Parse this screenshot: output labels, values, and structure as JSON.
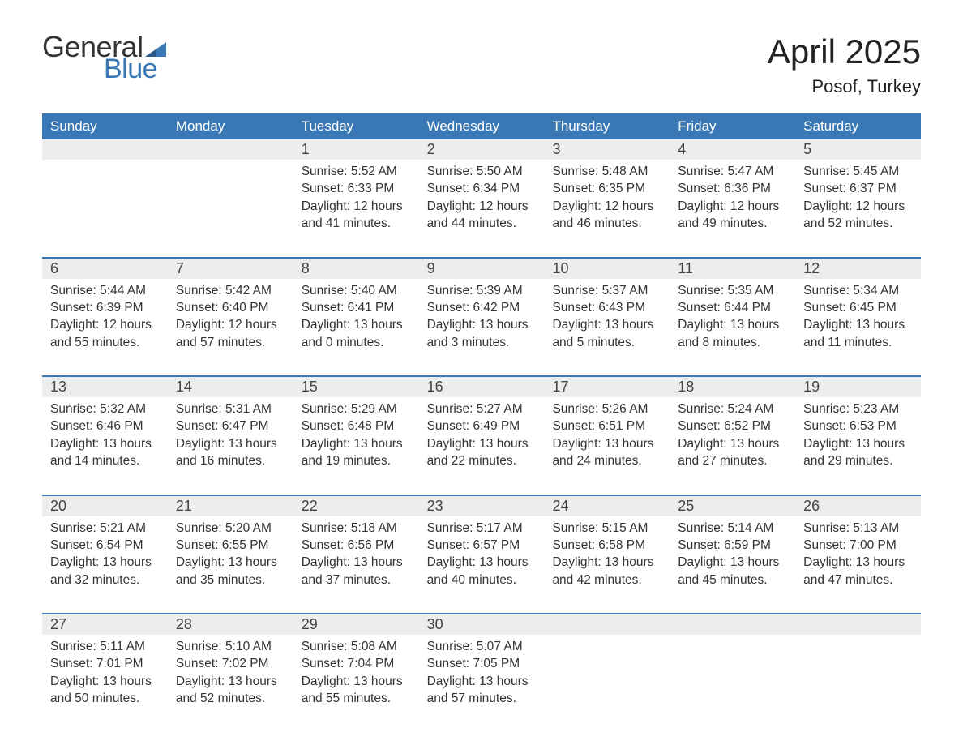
{
  "logo": {
    "text1": "General",
    "text2": "Blue",
    "text_color": "#333333",
    "accent_color": "#3a78b5"
  },
  "title": "April 2025",
  "location": "Posof, Turkey",
  "header_bg": "#3a78b5",
  "daynum_bg": "#ededed",
  "text_color": "#333333",
  "border_color": "#3a78b5",
  "weekdays": [
    "Sunday",
    "Monday",
    "Tuesday",
    "Wednesday",
    "Thursday",
    "Friday",
    "Saturday"
  ],
  "weeks": [
    [
      {
        "n": "",
        "sunrise": "",
        "sunset": "",
        "daylight1": "",
        "daylight2": "",
        "empty": true
      },
      {
        "n": "",
        "sunrise": "",
        "sunset": "",
        "daylight1": "",
        "daylight2": "",
        "empty": true
      },
      {
        "n": "1",
        "sunrise": "Sunrise: 5:52 AM",
        "sunset": "Sunset: 6:33 PM",
        "daylight1": "Daylight: 12 hours",
        "daylight2": "and 41 minutes."
      },
      {
        "n": "2",
        "sunrise": "Sunrise: 5:50 AM",
        "sunset": "Sunset: 6:34 PM",
        "daylight1": "Daylight: 12 hours",
        "daylight2": "and 44 minutes."
      },
      {
        "n": "3",
        "sunrise": "Sunrise: 5:48 AM",
        "sunset": "Sunset: 6:35 PM",
        "daylight1": "Daylight: 12 hours",
        "daylight2": "and 46 minutes."
      },
      {
        "n": "4",
        "sunrise": "Sunrise: 5:47 AM",
        "sunset": "Sunset: 6:36 PM",
        "daylight1": "Daylight: 12 hours",
        "daylight2": "and 49 minutes."
      },
      {
        "n": "5",
        "sunrise": "Sunrise: 5:45 AM",
        "sunset": "Sunset: 6:37 PM",
        "daylight1": "Daylight: 12 hours",
        "daylight2": "and 52 minutes."
      }
    ],
    [
      {
        "n": "6",
        "sunrise": "Sunrise: 5:44 AM",
        "sunset": "Sunset: 6:39 PM",
        "daylight1": "Daylight: 12 hours",
        "daylight2": "and 55 minutes."
      },
      {
        "n": "7",
        "sunrise": "Sunrise: 5:42 AM",
        "sunset": "Sunset: 6:40 PM",
        "daylight1": "Daylight: 12 hours",
        "daylight2": "and 57 minutes."
      },
      {
        "n": "8",
        "sunrise": "Sunrise: 5:40 AM",
        "sunset": "Sunset: 6:41 PM",
        "daylight1": "Daylight: 13 hours",
        "daylight2": "and 0 minutes."
      },
      {
        "n": "9",
        "sunrise": "Sunrise: 5:39 AM",
        "sunset": "Sunset: 6:42 PM",
        "daylight1": "Daylight: 13 hours",
        "daylight2": "and 3 minutes."
      },
      {
        "n": "10",
        "sunrise": "Sunrise: 5:37 AM",
        "sunset": "Sunset: 6:43 PM",
        "daylight1": "Daylight: 13 hours",
        "daylight2": "and 5 minutes."
      },
      {
        "n": "11",
        "sunrise": "Sunrise: 5:35 AM",
        "sunset": "Sunset: 6:44 PM",
        "daylight1": "Daylight: 13 hours",
        "daylight2": "and 8 minutes."
      },
      {
        "n": "12",
        "sunrise": "Sunrise: 5:34 AM",
        "sunset": "Sunset: 6:45 PM",
        "daylight1": "Daylight: 13 hours",
        "daylight2": "and 11 minutes."
      }
    ],
    [
      {
        "n": "13",
        "sunrise": "Sunrise: 5:32 AM",
        "sunset": "Sunset: 6:46 PM",
        "daylight1": "Daylight: 13 hours",
        "daylight2": "and 14 minutes."
      },
      {
        "n": "14",
        "sunrise": "Sunrise: 5:31 AM",
        "sunset": "Sunset: 6:47 PM",
        "daylight1": "Daylight: 13 hours",
        "daylight2": "and 16 minutes."
      },
      {
        "n": "15",
        "sunrise": "Sunrise: 5:29 AM",
        "sunset": "Sunset: 6:48 PM",
        "daylight1": "Daylight: 13 hours",
        "daylight2": "and 19 minutes."
      },
      {
        "n": "16",
        "sunrise": "Sunrise: 5:27 AM",
        "sunset": "Sunset: 6:49 PM",
        "daylight1": "Daylight: 13 hours",
        "daylight2": "and 22 minutes."
      },
      {
        "n": "17",
        "sunrise": "Sunrise: 5:26 AM",
        "sunset": "Sunset: 6:51 PM",
        "daylight1": "Daylight: 13 hours",
        "daylight2": "and 24 minutes."
      },
      {
        "n": "18",
        "sunrise": "Sunrise: 5:24 AM",
        "sunset": "Sunset: 6:52 PM",
        "daylight1": "Daylight: 13 hours",
        "daylight2": "and 27 minutes."
      },
      {
        "n": "19",
        "sunrise": "Sunrise: 5:23 AM",
        "sunset": "Sunset: 6:53 PM",
        "daylight1": "Daylight: 13 hours",
        "daylight2": "and 29 minutes."
      }
    ],
    [
      {
        "n": "20",
        "sunrise": "Sunrise: 5:21 AM",
        "sunset": "Sunset: 6:54 PM",
        "daylight1": "Daylight: 13 hours",
        "daylight2": "and 32 minutes."
      },
      {
        "n": "21",
        "sunrise": "Sunrise: 5:20 AM",
        "sunset": "Sunset: 6:55 PM",
        "daylight1": "Daylight: 13 hours",
        "daylight2": "and 35 minutes."
      },
      {
        "n": "22",
        "sunrise": "Sunrise: 5:18 AM",
        "sunset": "Sunset: 6:56 PM",
        "daylight1": "Daylight: 13 hours",
        "daylight2": "and 37 minutes."
      },
      {
        "n": "23",
        "sunrise": "Sunrise: 5:17 AM",
        "sunset": "Sunset: 6:57 PM",
        "daylight1": "Daylight: 13 hours",
        "daylight2": "and 40 minutes."
      },
      {
        "n": "24",
        "sunrise": "Sunrise: 5:15 AM",
        "sunset": "Sunset: 6:58 PM",
        "daylight1": "Daylight: 13 hours",
        "daylight2": "and 42 minutes."
      },
      {
        "n": "25",
        "sunrise": "Sunrise: 5:14 AM",
        "sunset": "Sunset: 6:59 PM",
        "daylight1": "Daylight: 13 hours",
        "daylight2": "and 45 minutes."
      },
      {
        "n": "26",
        "sunrise": "Sunrise: 5:13 AM",
        "sunset": "Sunset: 7:00 PM",
        "daylight1": "Daylight: 13 hours",
        "daylight2": "and 47 minutes."
      }
    ],
    [
      {
        "n": "27",
        "sunrise": "Sunrise: 5:11 AM",
        "sunset": "Sunset: 7:01 PM",
        "daylight1": "Daylight: 13 hours",
        "daylight2": "and 50 minutes."
      },
      {
        "n": "28",
        "sunrise": "Sunrise: 5:10 AM",
        "sunset": "Sunset: 7:02 PM",
        "daylight1": "Daylight: 13 hours",
        "daylight2": "and 52 minutes."
      },
      {
        "n": "29",
        "sunrise": "Sunrise: 5:08 AM",
        "sunset": "Sunset: 7:04 PM",
        "daylight1": "Daylight: 13 hours",
        "daylight2": "and 55 minutes."
      },
      {
        "n": "30",
        "sunrise": "Sunrise: 5:07 AM",
        "sunset": "Sunset: 7:05 PM",
        "daylight1": "Daylight: 13 hours",
        "daylight2": "and 57 minutes."
      },
      {
        "n": "",
        "sunrise": "",
        "sunset": "",
        "daylight1": "",
        "daylight2": "",
        "empty": true
      },
      {
        "n": "",
        "sunrise": "",
        "sunset": "",
        "daylight1": "",
        "daylight2": "",
        "empty": true
      },
      {
        "n": "",
        "sunrise": "",
        "sunset": "",
        "daylight1": "",
        "daylight2": "",
        "empty": true
      }
    ]
  ]
}
